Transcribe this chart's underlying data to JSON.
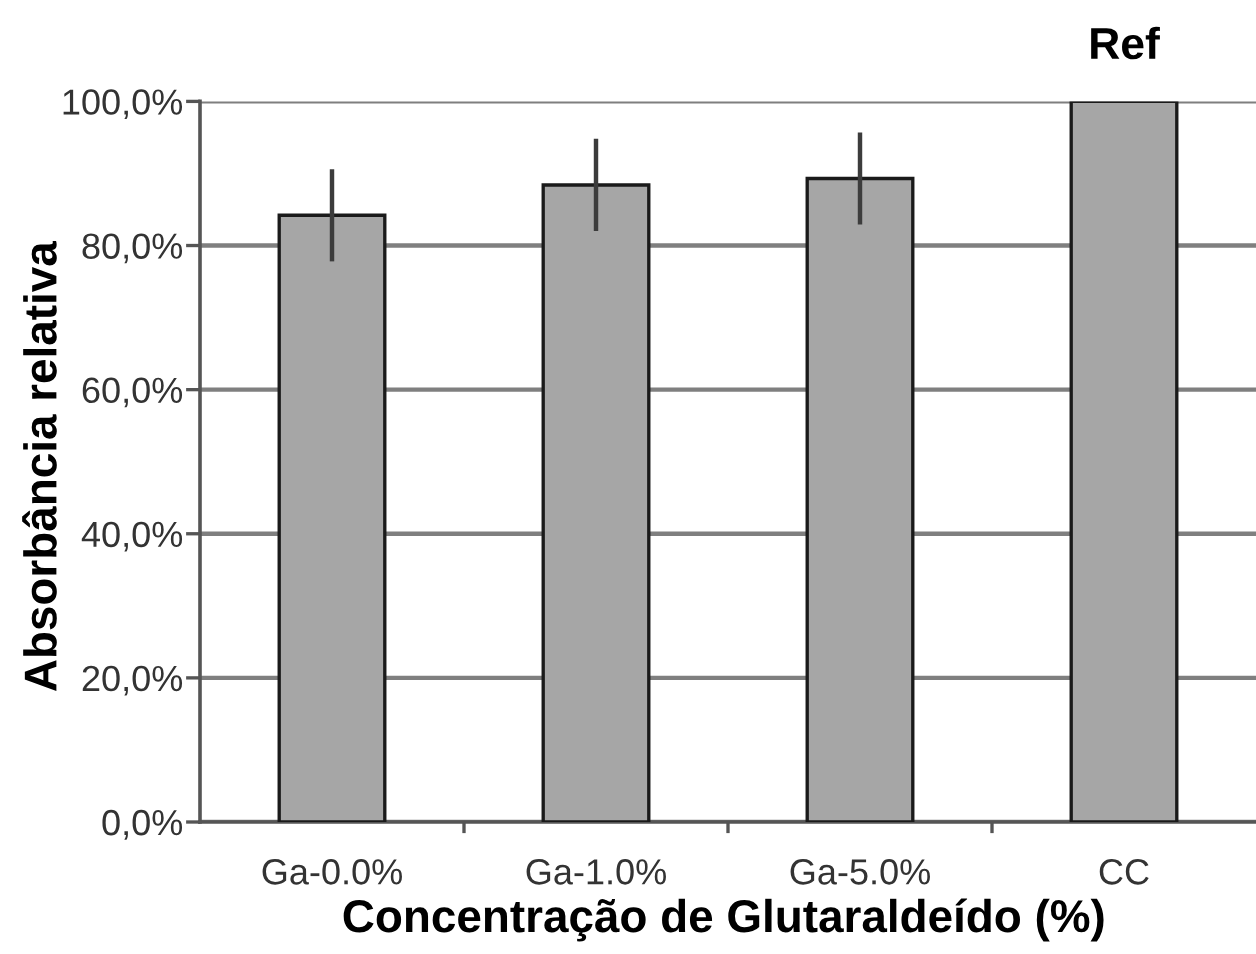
{
  "chart_data": {
    "type": "bar",
    "xlabel": "Concentração de Glutaraldeído (%)",
    "ylabel": "Absorbância relativa",
    "categories": [
      "Ga-0.0%",
      "Ga-1.0%",
      "Ga-5.0%",
      "CC"
    ],
    "values": [
      84.2,
      88.4,
      89.3,
      100
    ],
    "errors": [
      6.4,
      6.4,
      6.4,
      null
    ],
    "color": "#a6a6a6",
    "ylim": [
      0,
      100
    ],
    "yticks": [
      {
        "value": 0,
        "label": "0,0%"
      },
      {
        "value": 20,
        "label": "20,0%"
      },
      {
        "value": 40,
        "label": "40,0%"
      },
      {
        "value": 60,
        "label": "60,0%"
      },
      {
        "value": 80,
        "label": "80,0%"
      },
      {
        "value": 100,
        "label": "100,0%"
      }
    ],
    "grid": "y",
    "annotations": [
      {
        "text": "Ref",
        "x": "CC",
        "y": 100
      }
    ]
  }
}
